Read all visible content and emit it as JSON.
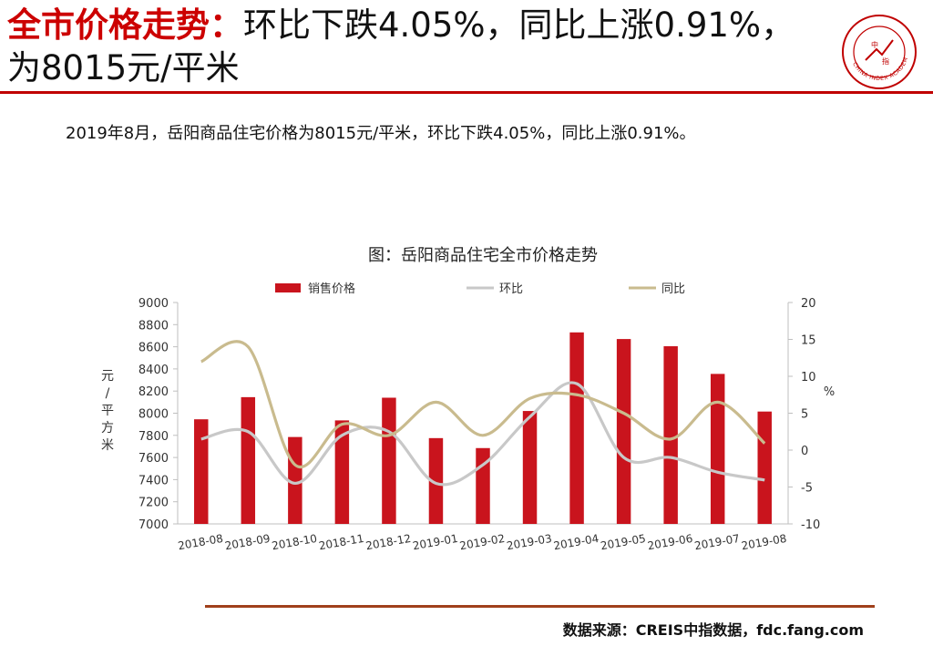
{
  "header": {
    "title_red": "全市价格走势：",
    "title_rest": "环比下跌4.05%，同比上涨0.91%，为8015元/平米"
  },
  "logo": {
    "name": "china-index-academy-logo",
    "text": "CHINA INDEX ACADEMY"
  },
  "summary": "2019年8月，岳阳商品住宅价格为8015元/平米，环比下跌4.05%，同比上涨0.91%。",
  "source": "数据来源：CREIS中指数据，fdc.fang.com",
  "colors": {
    "brand_red": "#c00000",
    "bar": "#c9141d",
    "mom_line": "#c8c8c8",
    "yoy_line": "#c9bb8e",
    "footer_rule": "#a0401b"
  },
  "chart_data": {
    "type": "bar",
    "title": "图：岳阳商品住宅全市价格走势",
    "categories": [
      "2018-08",
      "2018-09",
      "2018-10",
      "2018-11",
      "2018-12",
      "2019-01",
      "2019-02",
      "2019-03",
      "2019-04",
      "2019-05",
      "2019-06",
      "2019-07",
      "2019-08"
    ],
    "series": [
      {
        "name": "销售价格",
        "kind": "bar",
        "axis": "left",
        "color": "#c9141d",
        "values": [
          7945,
          8145,
          7785,
          7935,
          8140,
          7775,
          7685,
          8020,
          8730,
          8670,
          8605,
          8355,
          8015
        ]
      },
      {
        "name": "环比",
        "kind": "line",
        "axis": "right",
        "color": "#c8c8c8",
        "values": [
          1.5,
          2.5,
          -4.5,
          2.0,
          2.5,
          -4.5,
          -2.0,
          4.5,
          9.0,
          -1.0,
          -1.0,
          -3.0,
          -4.05
        ]
      },
      {
        "name": "同比",
        "kind": "line",
        "axis": "right",
        "color": "#c9bb8e",
        "values": [
          12.0,
          14.0,
          -2.0,
          3.5,
          2.0,
          6.5,
          2.0,
          7.0,
          7.5,
          5.0,
          1.5,
          6.5,
          0.91
        ]
      }
    ],
    "ylabel": "元/平方米",
    "y2label": "%",
    "ylim": [
      7000,
      9000
    ],
    "y2lim": [
      -10,
      20
    ],
    "yticks": [
      "7000",
      "7200",
      "7400",
      "7600",
      "7800",
      "8000",
      "8200",
      "8400",
      "8600",
      "8800",
      "9000"
    ],
    "y2ticks": [
      "-10",
      "-5",
      "0",
      "5",
      "10",
      "15",
      "20"
    ],
    "legend": "top",
    "grid": false
  }
}
